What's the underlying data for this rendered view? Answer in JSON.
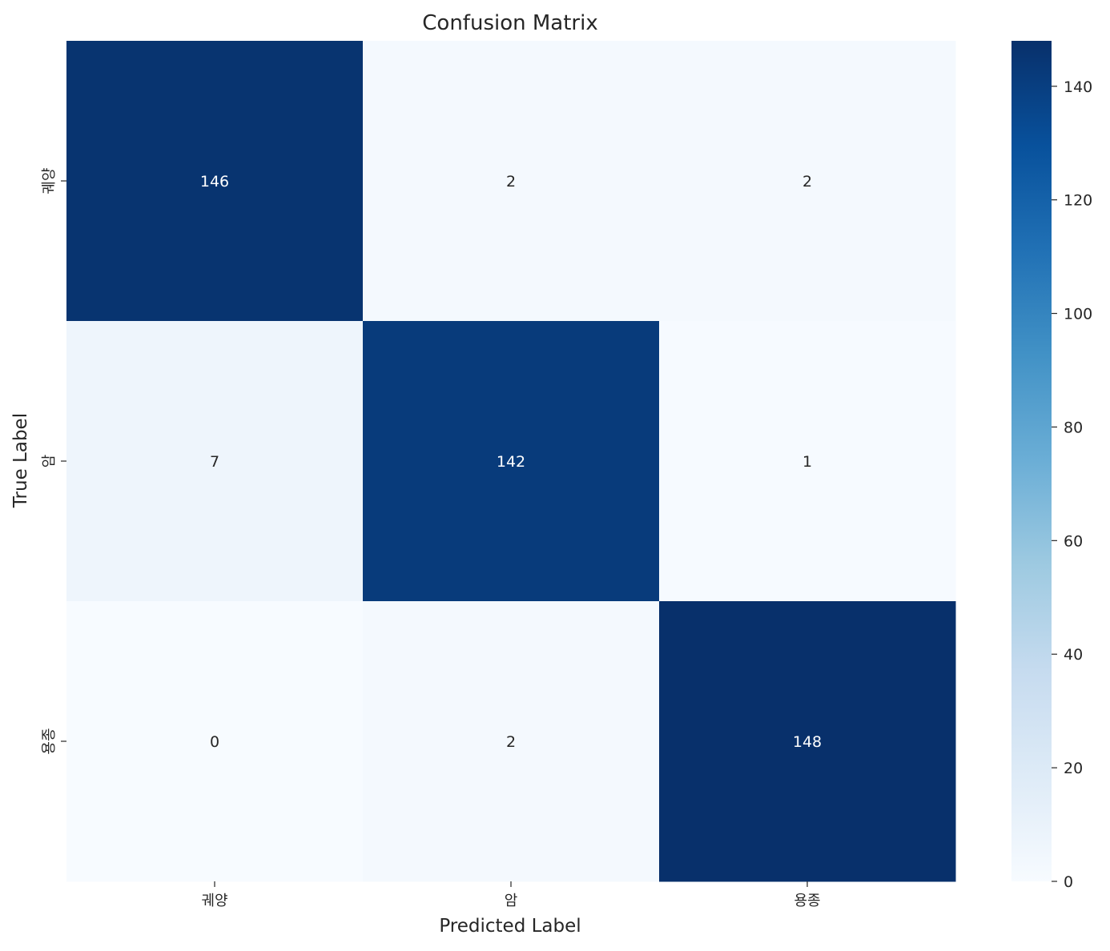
{
  "chart_data": {
    "type": "heatmap",
    "title": "Confusion Matrix",
    "xlabel": "Predicted Label",
    "ylabel": "True Label",
    "x_categories": [
      "궤양",
      "암",
      "용종"
    ],
    "y_categories": [
      "궤양",
      "암",
      "용종"
    ],
    "values": [
      [
        146,
        2,
        2
      ],
      [
        7,
        142,
        1
      ],
      [
        0,
        2,
        148
      ]
    ],
    "colormap": "Blues",
    "colorbar": {
      "vmin": 0,
      "vmax": 148,
      "ticks": [
        0,
        20,
        40,
        60,
        80,
        100,
        120,
        140
      ]
    },
    "annotation_colors": {
      "light": "#ffffff",
      "dark": "#262626"
    }
  }
}
